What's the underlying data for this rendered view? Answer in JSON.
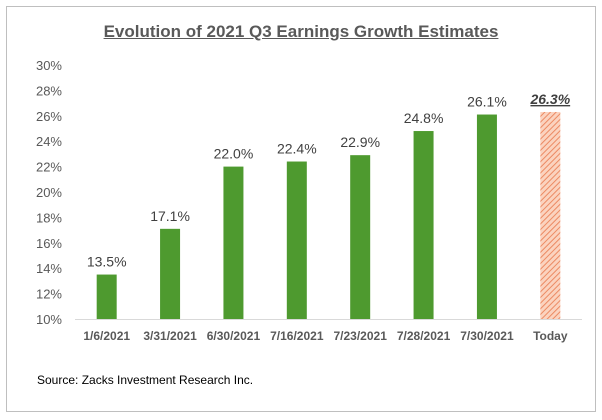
{
  "chart_data": {
    "type": "bar",
    "title": "Evolution of 2021 Q3 Earnings Growth Estimates",
    "categories": [
      "1/6/2021",
      "3/31/2021",
      "6/30/2021",
      "7/16/2021",
      "7/23/2021",
      "7/28/2021",
      "7/30/2021",
      "Today"
    ],
    "values": [
      13.5,
      17.1,
      22.0,
      22.4,
      22.9,
      24.8,
      26.1,
      26.3
    ],
    "data_labels": [
      "13.5%",
      "17.1%",
      "22.0%",
      "22.4%",
      "22.9%",
      "24.8%",
      "26.1%",
      "26.3%"
    ],
    "ylim": [
      10,
      30
    ],
    "yticks": [
      "10%",
      "12%",
      "14%",
      "16%",
      "18%",
      "20%",
      "22%",
      "24%",
      "26%",
      "28%",
      "30%"
    ],
    "grid": false,
    "colors": {
      "bar": "#4e9a2f",
      "highlight": "#f4a582",
      "highlight_stripe": "#e9815a",
      "highlight_label": "#404040"
    },
    "highlight_category": "Today"
  },
  "source": "Source: Zacks Investment Research Inc."
}
